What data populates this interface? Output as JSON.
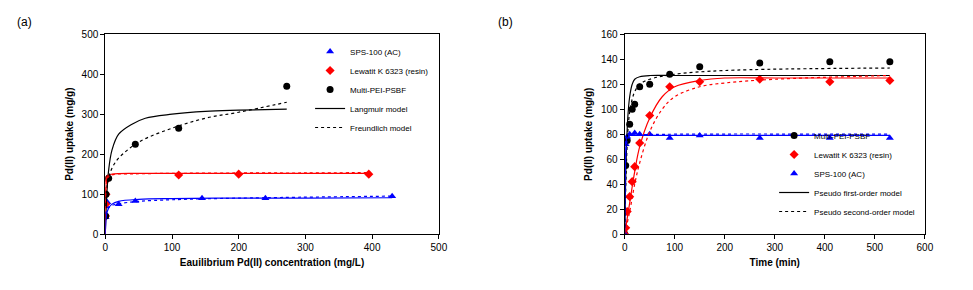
{
  "chart_data": [
    {
      "type": "scatter",
      "label": "(a)",
      "x_label": "Eauilibrium Pd(II) concentration (mg/L)",
      "y_label": "Pd(II) uptake (mg/g)",
      "xlim": [
        0,
        500
      ],
      "xticks": [
        0,
        100,
        200,
        300,
        400,
        500
      ],
      "ylim": [
        0,
        500
      ],
      "yticks": [
        0,
        100,
        200,
        300,
        400,
        500
      ],
      "grid": false,
      "legend": "top right",
      "series": [
        {
          "name": "SPS-100 (AC)",
          "color": "#0000ff",
          "marker": "triangle",
          "x": [
            0.5,
            1,
            3,
            20,
            45,
            145,
            240,
            430
          ],
          "values": [
            42,
            70,
            80,
            75,
            83,
            90,
            90,
            95
          ]
        },
        {
          "name": "Lewatit K 6323 (resin)",
          "color": "#ff0000",
          "marker": "diamond",
          "x": [
            0.2,
            0.5,
            1,
            3,
            110,
            200,
            395
          ],
          "values": [
            45,
            75,
            100,
            138,
            148,
            150,
            150
          ]
        },
        {
          "name": "Multi-PEI-PSBF",
          "color": "#000000",
          "marker": "circle",
          "x": [
            0.5,
            1,
            5,
            45,
            110,
            272
          ],
          "values": [
            45,
            100,
            140,
            225,
            265,
            370
          ]
        }
      ],
      "fits": [
        {
          "name": "Langmuir model",
          "line_style": "solid",
          "curves": [
            {
              "color": "#000000",
              "x": [
                0,
                2,
                5,
                10,
                20,
                40,
                60,
                100,
                150,
                200,
                272
              ],
              "values": [
                0,
                90,
                160,
                210,
                250,
                275,
                290,
                300,
                307,
                310,
                313
              ]
            },
            {
              "color": "#ff0000",
              "x": [
                0,
                1,
                3,
                10,
                50,
                100,
                200,
                300,
                395
              ],
              "values": [
                0,
                125,
                145,
                150,
                152,
                152,
                152,
                152,
                152
              ]
            },
            {
              "color": "#0000ff",
              "x": [
                0,
                2,
                5,
                10,
                20,
                50,
                100,
                200,
                300,
                430
              ],
              "values": [
                0,
                50,
                65,
                75,
                82,
                87,
                89,
                90,
                90,
                91
              ]
            }
          ]
        },
        {
          "name": "Freundlich model",
          "line_style": "dotted",
          "curves": [
            {
              "color": "#000000",
              "x": [
                0.5,
                2,
                5,
                10,
                20,
                50,
                100,
                150,
                200,
                272
              ],
              "values": [
                70,
                110,
                140,
                165,
                190,
                230,
                265,
                290,
                305,
                330
              ]
            },
            {
              "color": "#ff0000",
              "x": [
                0.5,
                1,
                3,
                10,
                50,
                100,
                200,
                300,
                395
              ],
              "values": [
                95,
                120,
                140,
                148,
                151,
                152,
                153,
                153,
                154
              ]
            },
            {
              "color": "#0000ff",
              "x": [
                0.5,
                2,
                5,
                10,
                20,
                50,
                100,
                200,
                430
              ],
              "values": [
                50,
                60,
                67,
                72,
                76,
                82,
                86,
                90,
                95
              ]
            }
          ]
        }
      ]
    },
    {
      "type": "scatter",
      "label": "(b)",
      "x_label": "Time (min)",
      "y_label": "Pd(II) uptake (mg/g)",
      "xlim": [
        0,
        600
      ],
      "xticks": [
        0,
        100,
        200,
        300,
        400,
        500,
        600
      ],
      "ylim": [
        0,
        160
      ],
      "yticks": [
        0,
        20,
        40,
        60,
        80,
        100,
        120,
        140,
        160
      ],
      "grid": false,
      "legend": "bottom right",
      "series": [
        {
          "name": "Multi-PEI-PSBF",
          "color": "#000000",
          "marker": "circle",
          "x": [
            0,
            2,
            5,
            10,
            15,
            20,
            30,
            50,
            90,
            150,
            270,
            410,
            530
          ],
          "values": [
            0,
            55,
            75,
            88,
            100,
            104,
            118,
            120,
            128,
            134,
            137,
            138,
            138
          ]
        },
        {
          "name": "Lewatit K 6323 (resin)",
          "color": "#ff0000",
          "marker": "diamond",
          "x": [
            0,
            2,
            5,
            10,
            15,
            20,
            30,
            50,
            90,
            150,
            270,
            410,
            530
          ],
          "values": [
            0,
            5,
            18,
            30,
            42,
            54,
            73,
            95,
            118,
            122,
            124,
            122,
            123
          ]
        },
        {
          "name": "SPS-100 (AC)",
          "color": "#0000ff",
          "marker": "triangle",
          "x": [
            0,
            2,
            5,
            10,
            20,
            30,
            50,
            90,
            150,
            270,
            410,
            530
          ],
          "values": [
            0,
            72,
            78,
            80,
            81,
            80,
            80,
            77,
            79,
            77,
            77,
            77
          ]
        }
      ],
      "fits": [
        {
          "name": "Pseudo first-order model",
          "line_style": "solid",
          "curves": [
            {
              "color": "#000000",
              "x": [
                0,
                3,
                6,
                10,
                15,
                20,
                30,
                50,
                100,
                200,
                530
              ],
              "values": [
                0,
                60,
                92,
                110,
                120,
                124,
                126,
                127,
                127,
                127,
                127
              ]
            },
            {
              "color": "#ff0000",
              "x": [
                0,
                10,
                20,
                30,
                50,
                75,
                100,
                150,
                200,
                300,
                530
              ],
              "values": [
                0,
                25,
                50,
                70,
                93,
                110,
                118,
                123,
                125,
                125,
                125
              ]
            },
            {
              "color": "#0000ff",
              "x": [
                0,
                1,
                2,
                4,
                6,
                10,
                30,
                100,
                530
              ],
              "values": [
                0,
                45,
                65,
                77,
                79,
                79,
                79,
                79,
                79
              ]
            }
          ]
        },
        {
          "name": "Pseudo second-order model",
          "line_style": "dotted",
          "curves": [
            {
              "color": "#000000",
              "x": [
                0,
                3,
                6,
                10,
                15,
                20,
                30,
                50,
                100,
                200,
                530
              ],
              "values": [
                0,
                50,
                80,
                98,
                108,
                114,
                120,
                124,
                128,
                131,
                133
              ]
            },
            {
              "color": "#ff0000",
              "x": [
                0,
                10,
                20,
                30,
                50,
                75,
                100,
                150,
                200,
                300,
                530
              ],
              "values": [
                0,
                18,
                40,
                57,
                82,
                100,
                110,
                118,
                121,
                124,
                127
              ]
            },
            {
              "color": "#0000ff",
              "x": [
                0,
                1,
                2,
                4,
                6,
                10,
                30,
                100,
                530
              ],
              "values": [
                0,
                40,
                60,
                73,
                77,
                79,
                79.5,
                80,
                80
              ]
            }
          ]
        }
      ]
    }
  ]
}
